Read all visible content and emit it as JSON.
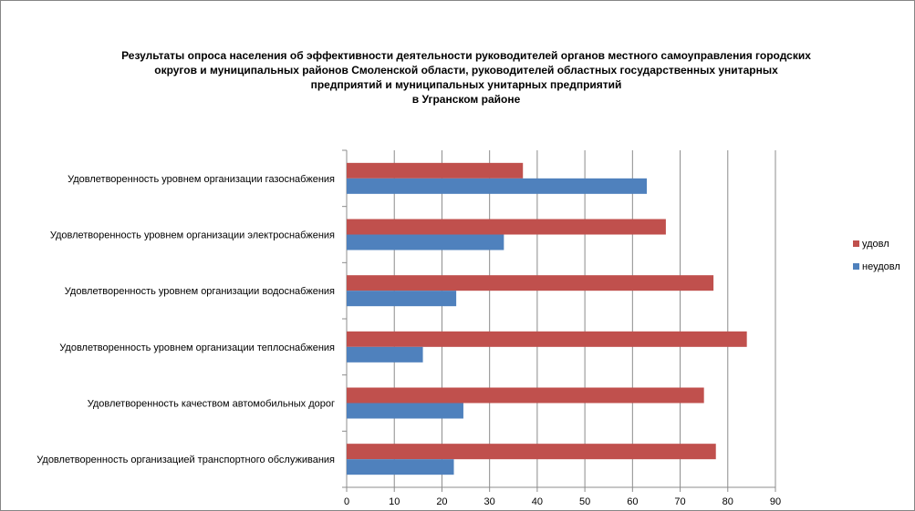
{
  "chart_data": {
    "type": "bar",
    "orientation": "horizontal",
    "title_lines": [
      "Результаты опроса населения об эффективности деятельности руководителей органов местного самоуправления городских",
      "округов и муниципальных районов Смоленской области, руководителей областных государственных унитарных",
      "предприятий и муниципальных унитарных предприятий",
      "в Угранском районе"
    ],
    "categories": [
      "Удовлетворенность  уровнем организации газоснабжения",
      "Удовлетворенность  уровнем организации электроснабжения",
      "Удовлетворенность  уровнем организации водоснабжения",
      "Удовлетворенность  уровнем организации теплоснабжения",
      "Удовлетворенность  качеством автомобильных дорог",
      "Удовлетворенность  организацией транспортного обслуживания"
    ],
    "series": [
      {
        "name": "удовл",
        "color": "#c0504d",
        "values": [
          37,
          67,
          77,
          84,
          75,
          77.5
        ]
      },
      {
        "name": "неудовл",
        "color": "#4f81bd",
        "values": [
          63,
          33,
          23,
          16,
          24.5,
          22.5
        ]
      }
    ],
    "xlim": [
      0,
      90
    ],
    "xticks": [
      0,
      10,
      20,
      30,
      40,
      50,
      60,
      70,
      80,
      90
    ],
    "grid": true,
    "legend_position": "right"
  }
}
